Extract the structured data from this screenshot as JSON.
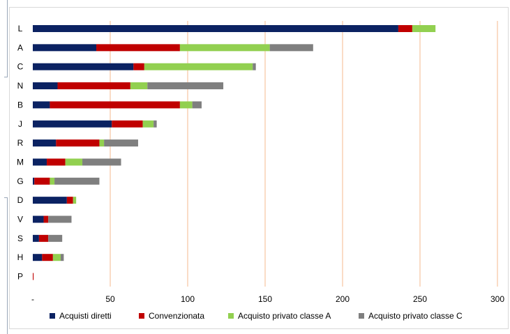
{
  "chart_data": {
    "type": "bar",
    "orientation": "horizontal",
    "stacked": true,
    "categories": [
      "L",
      "A",
      "C",
      "N",
      "B",
      "J",
      "R",
      "M",
      "G",
      "D",
      "V",
      "S",
      "H",
      "P"
    ],
    "series": [
      {
        "name": "Acquisti diretti",
        "color": "#0b2262",
        "values": [
          236,
          41,
          65,
          16,
          11,
          51,
          15,
          9,
          1,
          22,
          7,
          4,
          6,
          0
        ]
      },
      {
        "name": "Convenzionata",
        "color": "#c00000",
        "values": [
          9,
          54,
          7,
          47,
          84,
          20,
          28,
          12,
          10,
          4,
          3,
          6,
          7,
          0.5
        ]
      },
      {
        "name": "Acquisto privato classe A",
        "color": "#92d050",
        "values": [
          15,
          58,
          70,
          11,
          8,
          7,
          3,
          11,
          3,
          2,
          0,
          0,
          5,
          0
        ]
      },
      {
        "name": "Acquisto privato classe C",
        "color": "#7f7f7f",
        "values": [
          0,
          28,
          2,
          49,
          6,
          2,
          22,
          25,
          29,
          0,
          15,
          9,
          2,
          0
        ]
      }
    ],
    "xaxis": {
      "ticks": [
        0,
        50,
        100,
        150,
        200,
        250,
        300
      ],
      "tick_labels": [
        "-",
        "50",
        "100",
        "150",
        "200",
        "250",
        "300"
      ],
      "range": [
        0,
        300
      ],
      "gridline_color": "#ed7d31"
    },
    "xlabel": "",
    "ylabel": "",
    "legend_position": "bottom"
  }
}
